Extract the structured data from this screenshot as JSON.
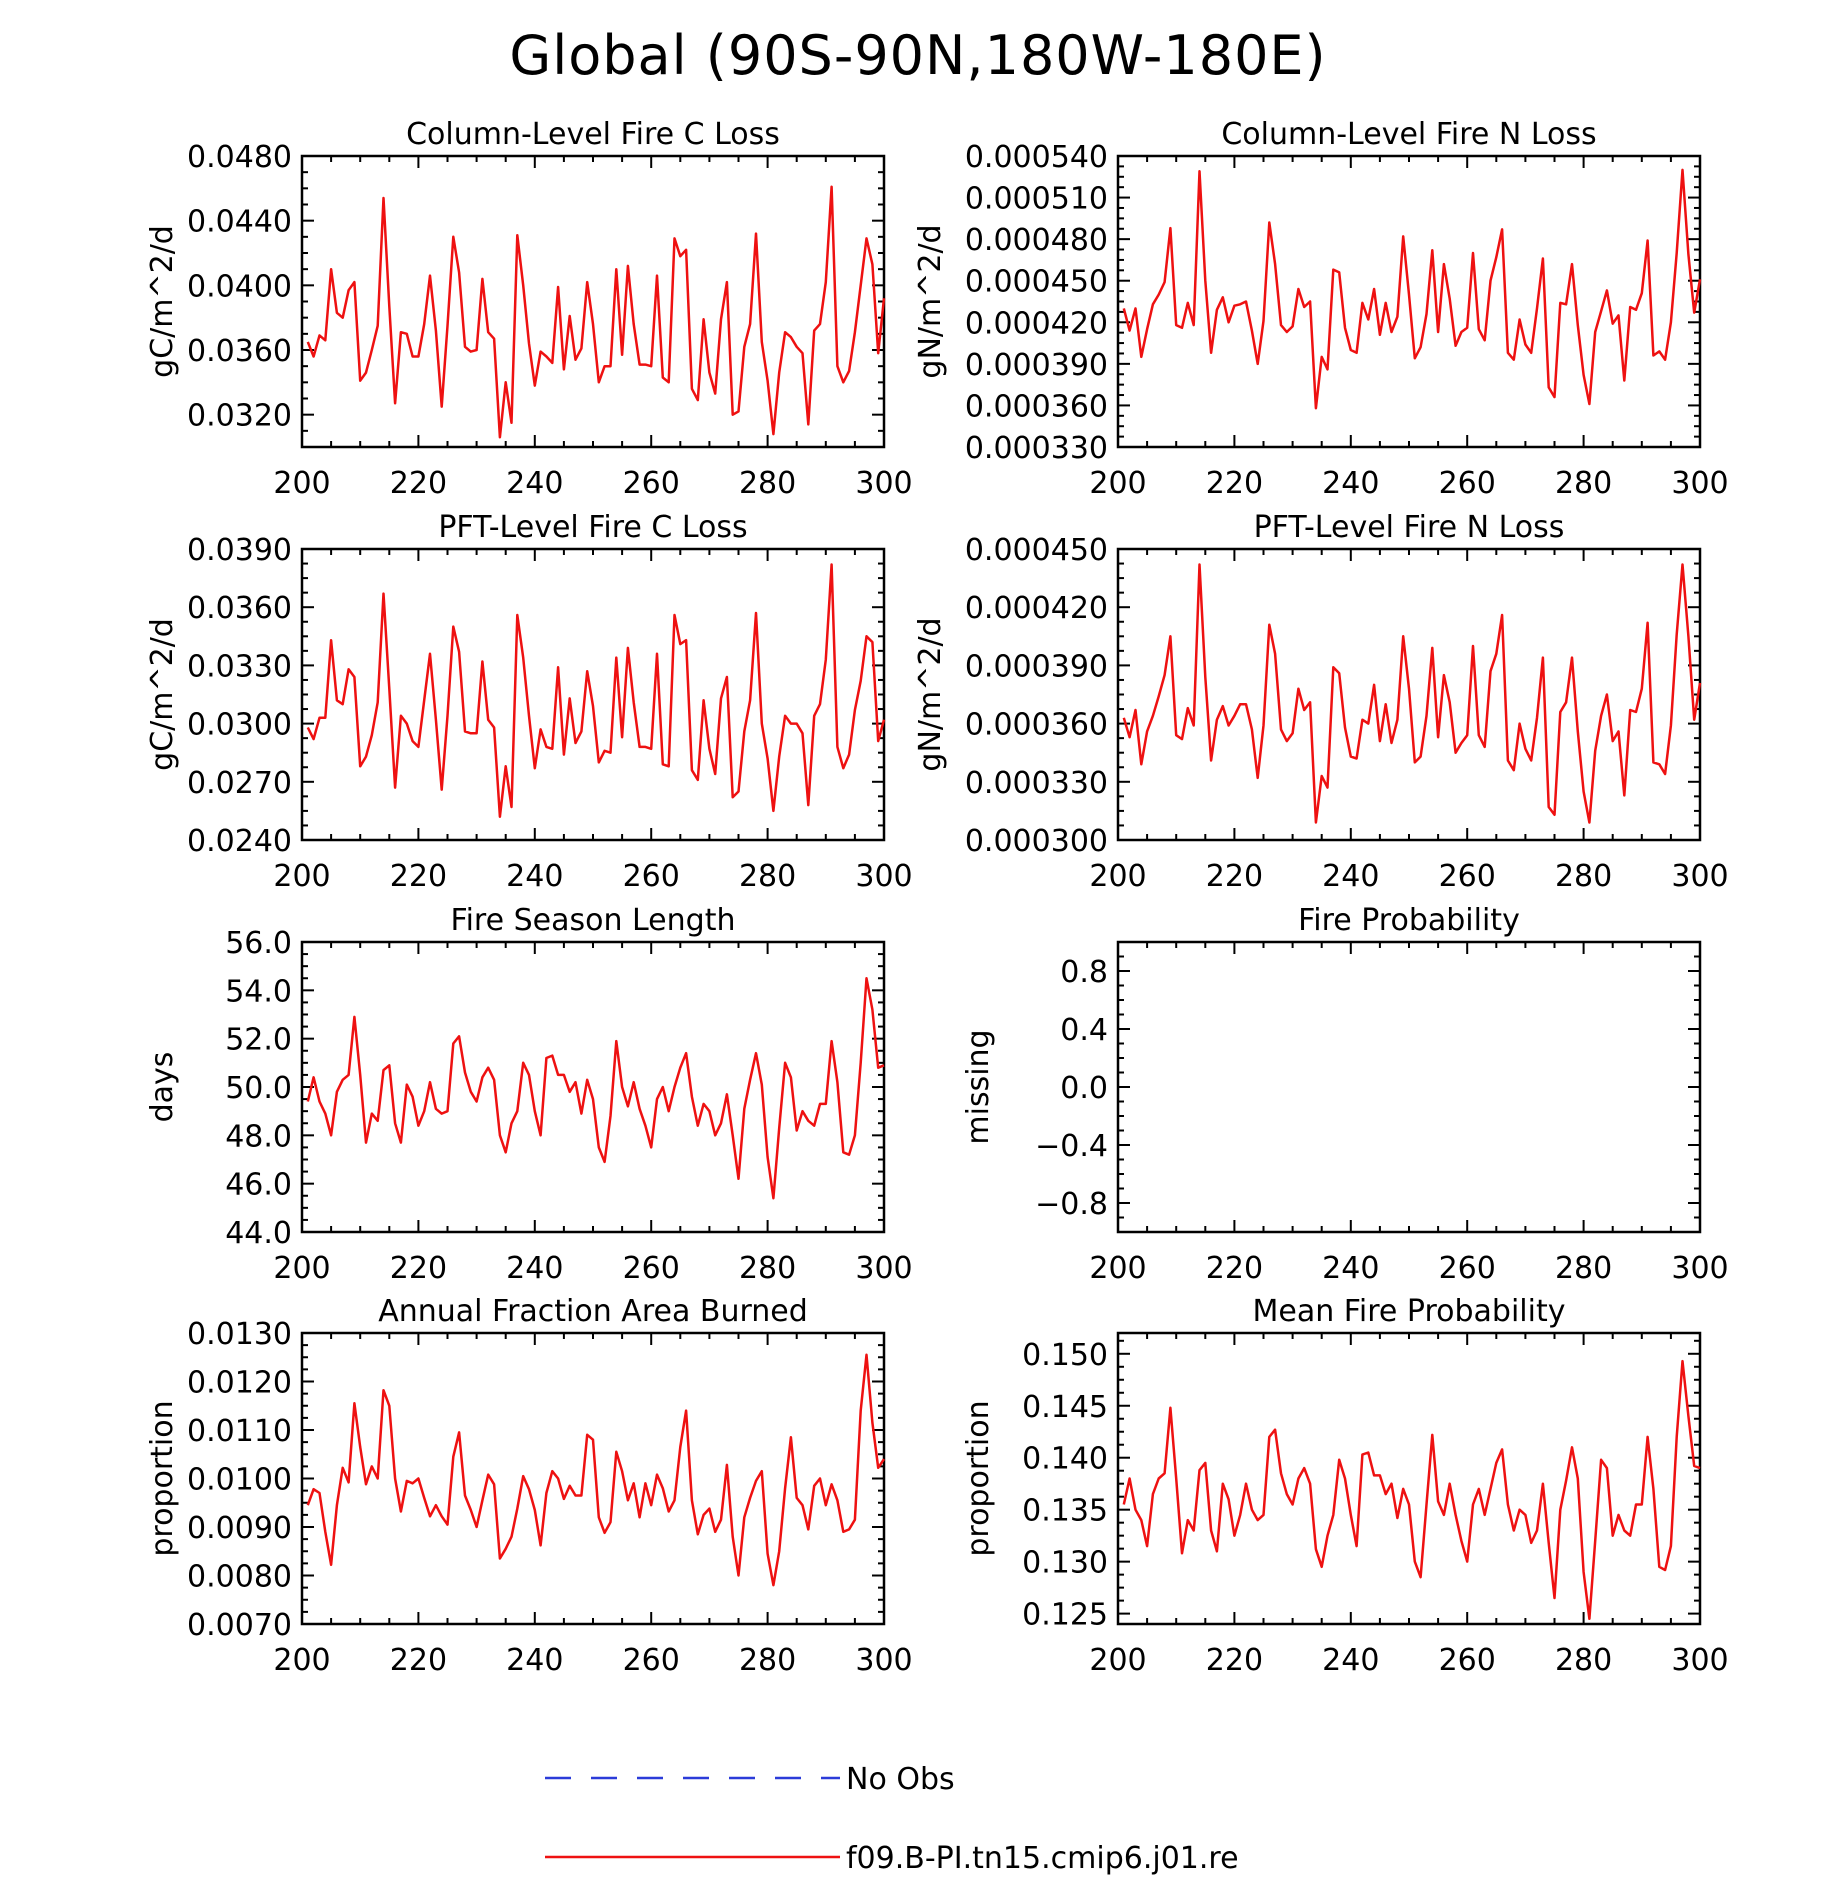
{
  "figure": {
    "title": "Global (90S-90N,180W-180E)",
    "legend": [
      {
        "label": "No Obs",
        "color": "#2b3cd9",
        "style": "dashed"
      },
      {
        "label": "f09.B-PI.tn15.cmip6.j01.re",
        "color": "#ee1111",
        "style": "solid"
      }
    ]
  },
  "chart_data": [
    {
      "type": "line",
      "title": "Column-Level Fire C Loss",
      "ylabel": "gC/m^2/d",
      "xlim": [
        200,
        300
      ],
      "ylim": [
        0.03,
        0.048
      ],
      "xticks": [
        200,
        220,
        240,
        260,
        280,
        300
      ],
      "yticks": [
        "0.0320",
        "0.0360",
        "0.0400",
        "0.0440",
        "0.0480"
      ],
      "series": [
        {
          "color": "#ee1111",
          "x_start": 201,
          "x_step": 1,
          "values": [
            0.0365,
            0.0356,
            0.0369,
            0.0366,
            0.041,
            0.0383,
            0.038,
            0.0397,
            0.0402,
            0.0341,
            0.0346,
            0.036,
            0.0375,
            0.0454,
            0.0387,
            0.0327,
            0.0371,
            0.037,
            0.0356,
            0.0356,
            0.0376,
            0.0406,
            0.0372,
            0.0325,
            0.0375,
            0.043,
            0.0408,
            0.0362,
            0.0359,
            0.036,
            0.0404,
            0.0371,
            0.0367,
            0.0306,
            0.034,
            0.0315,
            0.0431,
            0.04,
            0.0364,
            0.0338,
            0.0359,
            0.0356,
            0.0352,
            0.0399,
            0.0348,
            0.0381,
            0.0354,
            0.0361,
            0.0402,
            0.0376,
            0.034,
            0.035,
            0.035,
            0.041,
            0.0357,
            0.0412,
            0.0376,
            0.0351,
            0.0351,
            0.035,
            0.0406,
            0.0343,
            0.034,
            0.0429,
            0.0418,
            0.0422,
            0.0336,
            0.0329,
            0.0379,
            0.0346,
            0.0333,
            0.0379,
            0.0402,
            0.032,
            0.0322,
            0.0362,
            0.0376,
            0.0432,
            0.0365,
            0.0341,
            0.0308,
            0.0346,
            0.0371,
            0.0368,
            0.0362,
            0.0358,
            0.0314,
            0.0372,
            0.0376,
            0.0402,
            0.0461,
            0.035,
            0.034,
            0.0347,
            0.0371,
            0.04,
            0.0429,
            0.0413,
            0.0358,
            0.0392
          ]
        }
      ]
    },
    {
      "type": "line",
      "title": "Column-Level Fire N Loss",
      "ylabel": "gN/m^2/d",
      "xlim": [
        200,
        300
      ],
      "ylim": [
        0.00033,
        0.00054
      ],
      "xticks": [
        200,
        220,
        240,
        260,
        280,
        300
      ],
      "yticks": [
        "0.000330",
        "0.000360",
        "0.000390",
        "0.000420",
        "0.000450",
        "0.000480",
        "0.000510",
        "0.000540"
      ],
      "series": [
        {
          "color": "#ee1111",
          "x_start": 201,
          "x_step": 1,
          "values": [
            0.00043,
            0.000414,
            0.00043,
            0.000395,
            0.000415,
            0.000433,
            0.00044,
            0.000449,
            0.000488,
            0.000418,
            0.000416,
            0.000434,
            0.000418,
            0.000529,
            0.00045,
            0.000398,
            0.000429,
            0.000438,
            0.00042,
            0.000432,
            0.000433,
            0.000435,
            0.000414,
            0.00039,
            0.000421,
            0.000492,
            0.000462,
            0.000418,
            0.000413,
            0.000417,
            0.000444,
            0.000431,
            0.000435,
            0.000358,
            0.000395,
            0.000386,
            0.000458,
            0.000456,
            0.000416,
            0.0004,
            0.000398,
            0.000434,
            0.000422,
            0.000444,
            0.000411,
            0.000434,
            0.000413,
            0.000424,
            0.000482,
            0.00044,
            0.000394,
            0.000402,
            0.000426,
            0.000472,
            0.000413,
            0.000462,
            0.000437,
            0.000403,
            0.000413,
            0.000416,
            0.00047,
            0.000415,
            0.000407,
            0.00045,
            0.000467,
            0.000487,
            0.000398,
            0.000393,
            0.000422,
            0.000404,
            0.000398,
            0.00043,
            0.000466,
            0.000373,
            0.000366,
            0.000434,
            0.000433,
            0.000462,
            0.000418,
            0.000382,
            0.000361,
            0.000413,
            0.000428,
            0.000443,
            0.000419,
            0.000425,
            0.000378,
            0.000431,
            0.000429,
            0.000441,
            0.000479,
            0.000396,
            0.000399,
            0.000393,
            0.00042,
            0.00047,
            0.00053,
            0.000469,
            0.000427,
            0.000451
          ]
        }
      ]
    },
    {
      "type": "line",
      "title": "PFT-Level Fire C Loss",
      "ylabel": "gC/m^2/d",
      "xlim": [
        200,
        300
      ],
      "ylim": [
        0.024,
        0.039
      ],
      "xticks": [
        200,
        220,
        240,
        260,
        280,
        300
      ],
      "yticks": [
        "0.0240",
        "0.0270",
        "0.0300",
        "0.0330",
        "0.0360",
        "0.0390"
      ],
      "series": [
        {
          "color": "#ee1111",
          "x_start": 201,
          "x_step": 1,
          "values": [
            0.0298,
            0.0292,
            0.0303,
            0.0303,
            0.0343,
            0.0312,
            0.031,
            0.0328,
            0.0324,
            0.0278,
            0.0283,
            0.0294,
            0.0311,
            0.0367,
            0.0318,
            0.0267,
            0.0304,
            0.03,
            0.0291,
            0.0288,
            0.0312,
            0.0336,
            0.0302,
            0.0266,
            0.0304,
            0.035,
            0.0337,
            0.0296,
            0.0295,
            0.0295,
            0.0332,
            0.0302,
            0.0298,
            0.0252,
            0.0278,
            0.0257,
            0.0356,
            0.0334,
            0.0304,
            0.0277,
            0.0297,
            0.0288,
            0.0287,
            0.0329,
            0.0284,
            0.0313,
            0.029,
            0.0296,
            0.0327,
            0.0309,
            0.028,
            0.0286,
            0.0285,
            0.0334,
            0.0293,
            0.0339,
            0.0311,
            0.0288,
            0.0288,
            0.0287,
            0.0336,
            0.0279,
            0.0278,
            0.0356,
            0.0341,
            0.0343,
            0.0276,
            0.0271,
            0.0312,
            0.0287,
            0.0274,
            0.0313,
            0.0324,
            0.0262,
            0.0265,
            0.0296,
            0.0312,
            0.0357,
            0.03,
            0.0282,
            0.0255,
            0.0283,
            0.0304,
            0.03,
            0.03,
            0.0295,
            0.0258,
            0.0304,
            0.031,
            0.0333,
            0.0382,
            0.0288,
            0.0277,
            0.0284,
            0.0307,
            0.0322,
            0.0345,
            0.0342,
            0.0291,
            0.0302
          ]
        }
      ]
    },
    {
      "type": "line",
      "title": "PFT-Level Fire N Loss",
      "ylabel": "gN/m^2/d",
      "xlim": [
        200,
        300
      ],
      "ylim": [
        0.0003,
        0.00045
      ],
      "xticks": [
        200,
        220,
        240,
        260,
        280,
        300
      ],
      "yticks": [
        "0.000300",
        "0.000330",
        "0.000360",
        "0.000390",
        "0.000420",
        "0.000450"
      ],
      "series": [
        {
          "color": "#ee1111",
          "x_start": 201,
          "x_step": 1,
          "values": [
            0.000363,
            0.000353,
            0.000367,
            0.000339,
            0.000356,
            0.000364,
            0.000374,
            0.000385,
            0.000405,
            0.000354,
            0.000352,
            0.000368,
            0.000359,
            0.000442,
            0.000384,
            0.000341,
            0.000362,
            0.000369,
            0.000359,
            0.000364,
            0.00037,
            0.00037,
            0.000357,
            0.000332,
            0.000359,
            0.000411,
            0.000396,
            0.000357,
            0.000351,
            0.000355,
            0.000378,
            0.000367,
            0.000371,
            0.000309,
            0.000333,
            0.000327,
            0.000389,
            0.000386,
            0.000358,
            0.000343,
            0.000342,
            0.000362,
            0.00036,
            0.00038,
            0.000351,
            0.00037,
            0.00035,
            0.000362,
            0.000405,
            0.000378,
            0.00034,
            0.000343,
            0.000364,
            0.000399,
            0.000353,
            0.000385,
            0.000371,
            0.000345,
            0.00035,
            0.000354,
            0.0004,
            0.000354,
            0.000348,
            0.000387,
            0.000396,
            0.000416,
            0.000341,
            0.000336,
            0.00036,
            0.000347,
            0.000341,
            0.000363,
            0.000394,
            0.000317,
            0.000313,
            0.000366,
            0.000371,
            0.000394,
            0.000356,
            0.000325,
            0.000309,
            0.000346,
            0.000364,
            0.000375,
            0.000351,
            0.000356,
            0.000323,
            0.000367,
            0.000366,
            0.000378,
            0.000412,
            0.00034,
            0.000339,
            0.000334,
            0.000359,
            0.000406,
            0.000442,
            0.000405,
            0.000362,
            0.000381
          ]
        }
      ]
    },
    {
      "type": "line",
      "title": "Fire Season Length",
      "ylabel": "days",
      "xlim": [
        200,
        300
      ],
      "ylim": [
        44.0,
        56.0
      ],
      "xticks": [
        200,
        220,
        240,
        260,
        280,
        300
      ],
      "yticks": [
        "44.0",
        "46.0",
        "48.0",
        "50.0",
        "52.0",
        "54.0",
        "56.0"
      ],
      "series": [
        {
          "color": "#ee1111",
          "x_start": 201,
          "x_step": 1,
          "values": [
            49.4,
            50.4,
            49.4,
            48.9,
            48.0,
            49.8,
            50.3,
            50.5,
            52.9,
            50.5,
            47.7,
            48.9,
            48.6,
            50.7,
            50.9,
            48.5,
            47.7,
            50.1,
            49.6,
            48.4,
            49.0,
            50.2,
            49.1,
            48.9,
            49.0,
            51.8,
            52.1,
            50.6,
            49.8,
            49.4,
            50.4,
            50.8,
            50.3,
            48.0,
            47.3,
            48.5,
            49.0,
            51.0,
            50.5,
            49.0,
            48.0,
            51.2,
            51.3,
            50.5,
            50.5,
            49.8,
            50.2,
            48.9,
            50.3,
            49.5,
            47.5,
            46.9,
            48.8,
            51.9,
            50.0,
            49.2,
            50.2,
            49.1,
            48.4,
            47.5,
            49.5,
            50.0,
            49.0,
            50.0,
            50.8,
            51.4,
            49.6,
            48.4,
            49.3,
            49.0,
            48.0,
            48.5,
            49.7,
            48.0,
            46.2,
            49.1,
            50.3,
            51.4,
            50.1,
            47.1,
            45.4,
            48.3,
            51.0,
            50.4,
            48.2,
            49.0,
            48.6,
            48.4,
            49.3,
            49.3,
            51.9,
            50.2,
            47.3,
            47.2,
            48.0,
            51.0,
            54.5,
            53.2,
            50.8,
            50.9
          ]
        }
      ]
    },
    {
      "type": "line",
      "title": "Fire Probability",
      "ylabel": "missing",
      "xlim": [
        200,
        300
      ],
      "ylim": [
        -1.0,
        1.0
      ],
      "xticks": [
        200,
        220,
        240,
        260,
        280,
        300
      ],
      "yticks": [
        "-0.8",
        "-0.4",
        "0.0",
        "0.4",
        "0.8"
      ],
      "series": []
    },
    {
      "type": "line",
      "title": "Annual Fraction Area Burned",
      "ylabel": "proportion",
      "xlim": [
        200,
        300
      ],
      "ylim": [
        0.007,
        0.013
      ],
      "xticks": [
        200,
        220,
        240,
        260,
        280,
        300
      ],
      "yticks": [
        "0.0070",
        "0.0080",
        "0.0090",
        "0.0100",
        "0.0110",
        "0.0120",
        "0.0130"
      ],
      "series": [
        {
          "color": "#ee1111",
          "x_start": 201,
          "x_step": 1,
          "values": [
            0.00945,
            0.00978,
            0.0097,
            0.0089,
            0.00822,
            0.00945,
            0.01022,
            0.00992,
            0.01155,
            0.01065,
            0.00988,
            0.01025,
            0.01,
            0.01182,
            0.0115,
            0.01,
            0.00932,
            0.00995,
            0.0099,
            0.01,
            0.0096,
            0.00922,
            0.00945,
            0.00922,
            0.00905,
            0.01045,
            0.01095,
            0.00965,
            0.00935,
            0.009,
            0.00955,
            0.01008,
            0.00988,
            0.00835,
            0.00855,
            0.0088,
            0.00938,
            0.01005,
            0.00978,
            0.00935,
            0.00862,
            0.0097,
            0.01015,
            0.01,
            0.00958,
            0.00985,
            0.00965,
            0.00965,
            0.0109,
            0.0108,
            0.0092,
            0.00888,
            0.0091,
            0.01055,
            0.01015,
            0.00955,
            0.0099,
            0.0092,
            0.0099,
            0.00945,
            0.01008,
            0.0098,
            0.00932,
            0.00955,
            0.01065,
            0.0114,
            0.00955,
            0.00885,
            0.00925,
            0.00938,
            0.0089,
            0.00915,
            0.01028,
            0.0088,
            0.008,
            0.0092,
            0.0096,
            0.00995,
            0.01015,
            0.00845,
            0.0078,
            0.0085,
            0.0098,
            0.01085,
            0.0096,
            0.00945,
            0.00895,
            0.00985,
            0.01,
            0.00945,
            0.00988,
            0.00955,
            0.0089,
            0.00895,
            0.00915,
            0.0114,
            0.01255,
            0.01115,
            0.01022,
            0.0104
          ]
        }
      ]
    },
    {
      "type": "line",
      "title": "Mean Fire Probability",
      "ylabel": "proportion",
      "xlim": [
        200,
        300
      ],
      "ylim": [
        0.124,
        0.152
      ],
      "xticks": [
        200,
        220,
        240,
        260,
        280,
        300
      ],
      "yticks": [
        "0.125",
        "0.130",
        "0.135",
        "0.140",
        "0.145",
        "0.150"
      ],
      "series": [
        {
          "color": "#ee1111",
          "x_start": 201,
          "x_step": 1,
          "values": [
            0.1355,
            0.138,
            0.135,
            0.134,
            0.1315,
            0.1365,
            0.138,
            0.1385,
            0.1448,
            0.138,
            0.1308,
            0.134,
            0.133,
            0.1388,
            0.1395,
            0.133,
            0.131,
            0.1375,
            0.136,
            0.1325,
            0.1345,
            0.1375,
            0.135,
            0.134,
            0.1345,
            0.142,
            0.1427,
            0.1385,
            0.1365,
            0.1355,
            0.138,
            0.139,
            0.1375,
            0.1312,
            0.1295,
            0.1325,
            0.1345,
            0.1398,
            0.138,
            0.1345,
            0.1315,
            0.1403,
            0.1405,
            0.1383,
            0.1383,
            0.1365,
            0.1375,
            0.1342,
            0.137,
            0.1355,
            0.13,
            0.1285,
            0.1355,
            0.1422,
            0.1358,
            0.1345,
            0.1375,
            0.1345,
            0.132,
            0.13,
            0.1355,
            0.137,
            0.1345,
            0.137,
            0.1395,
            0.1408,
            0.1355,
            0.133,
            0.135,
            0.1345,
            0.1318,
            0.133,
            0.1375,
            0.1318,
            0.1265,
            0.135,
            0.1378,
            0.141,
            0.138,
            0.129,
            0.1245,
            0.132,
            0.1398,
            0.139,
            0.1325,
            0.1345,
            0.133,
            0.1325,
            0.1355,
            0.1355,
            0.142,
            0.137,
            0.1295,
            0.1292,
            0.1315,
            0.142,
            0.1493,
            0.144,
            0.1392,
            0.139
          ]
        }
      ]
    }
  ]
}
